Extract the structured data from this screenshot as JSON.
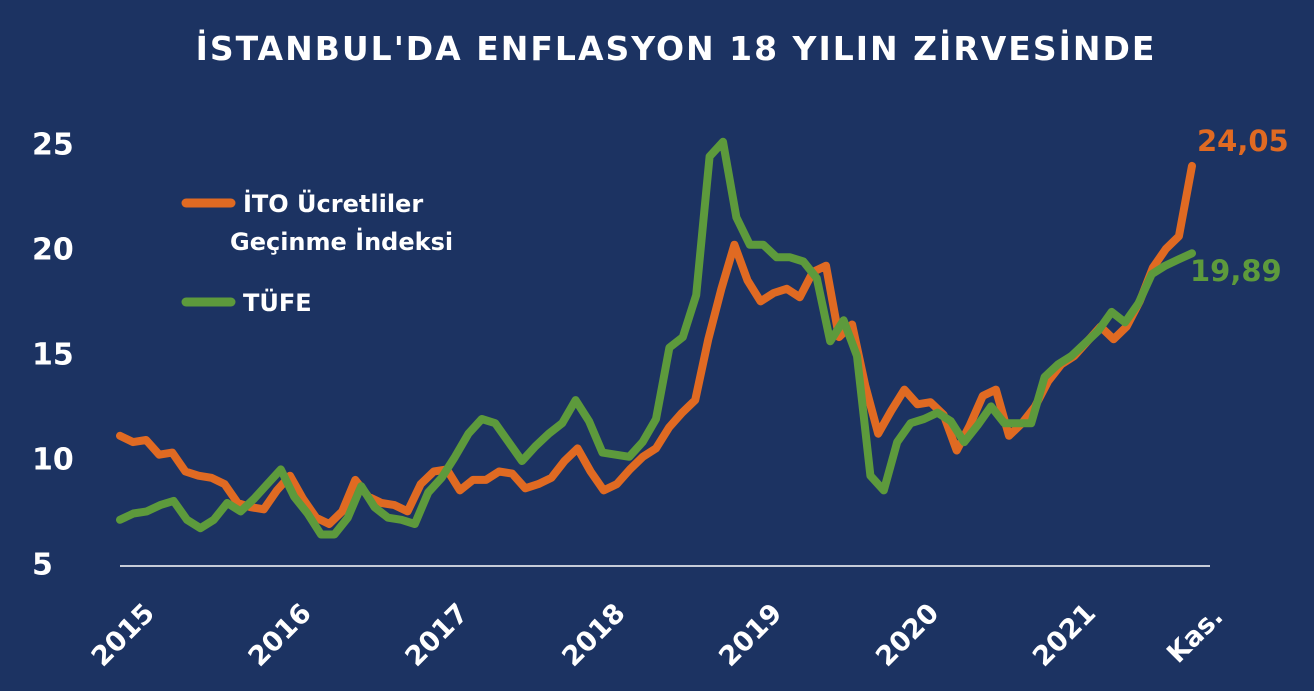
{
  "colors": {
    "background": "#1c3362",
    "ito": "#e06a22",
    "tufe": "#5d9a3c",
    "axis": "#ffffff"
  },
  "chart_data": {
    "type": "line",
    "title": "İSTANBUL'DA ENFLASYON 18 YILIN ZİRVESİNDE",
    "ylim": [
      5,
      25
    ],
    "yticks": [
      "5",
      "10",
      "15",
      "20",
      "25"
    ],
    "xlim": [
      0,
      82
    ],
    "xticks": [
      {
        "label": "2015",
        "x": 0
      },
      {
        "label": "2016",
        "x": 12
      },
      {
        "label": "2017",
        "x": 24
      },
      {
        "label": "2018",
        "x": 36
      },
      {
        "label": "2019",
        "x": 48
      },
      {
        "label": "2020",
        "x": 60
      },
      {
        "label": "2021",
        "x": 72
      },
      {
        "label": "Kas.",
        "x": 82
      }
    ],
    "grid": false,
    "legend_position": "upper-left",
    "series": [
      {
        "name": "İTO Ücretliler Geçinme İndeksi",
        "end_label": "24,05",
        "values": [
          11.2,
          10.9,
          11.0,
          10.3,
          10.4,
          9.5,
          9.3,
          9.2,
          8.9,
          8.0,
          7.8,
          7.7,
          8.6,
          9.3,
          8.2,
          7.3,
          7.0,
          7.6,
          9.1,
          8.3,
          8.0,
          7.9,
          7.6,
          8.9,
          9.5,
          9.6,
          8.6,
          9.1,
          9.1,
          9.5,
          9.4,
          8.7,
          8.9,
          9.2,
          10.0,
          10.6,
          9.5,
          8.6,
          8.9,
          9.6,
          10.2,
          10.6,
          11.6,
          12.3,
          12.9,
          15.8,
          18.2,
          20.3,
          18.6,
          17.6,
          18.0,
          18.2,
          17.8,
          19.0,
          19.3,
          15.9,
          16.5,
          13.6,
          11.3,
          12.4,
          13.4,
          12.7,
          12.8,
          12.2,
          10.5,
          11.7,
          13.1,
          13.4,
          11.2,
          11.8,
          12.6,
          13.8,
          14.6,
          15.0,
          15.7,
          16.4,
          15.8,
          16.4,
          17.6,
          19.2,
          20.1,
          20.7,
          24.05
        ]
      },
      {
        "name": "TÜFE",
        "end_label": "19,89",
        "values": [
          7.2,
          7.5,
          7.6,
          7.9,
          8.1,
          7.2,
          6.8,
          7.2,
          8.0,
          7.6,
          8.2,
          8.9,
          9.6,
          8.3,
          7.5,
          6.5,
          6.5,
          7.3,
          8.8,
          7.8,
          7.3,
          7.2,
          7.0,
          8.5,
          9.2,
          10.2,
          11.3,
          12.0,
          11.8,
          10.9,
          10.0,
          10.7,
          11.3,
          11.8,
          12.9,
          11.9,
          10.4,
          10.3,
          10.2,
          10.9,
          12.0,
          15.4,
          15.9,
          17.9,
          24.5,
          25.2,
          21.6,
          20.3,
          20.3,
          19.7,
          19.7,
          19.5,
          18.7,
          15.7,
          16.7,
          15.0,
          9.3,
          8.6,
          10.9,
          11.8,
          12.0,
          12.3,
          11.9,
          10.9,
          11.7,
          12.6,
          11.8,
          11.8,
          11.8,
          14.0,
          14.6,
          15.0,
          15.6,
          16.2,
          17.1,
          16.6,
          17.5,
          18.9,
          19.3,
          19.6,
          19.89
        ]
      }
    ]
  }
}
